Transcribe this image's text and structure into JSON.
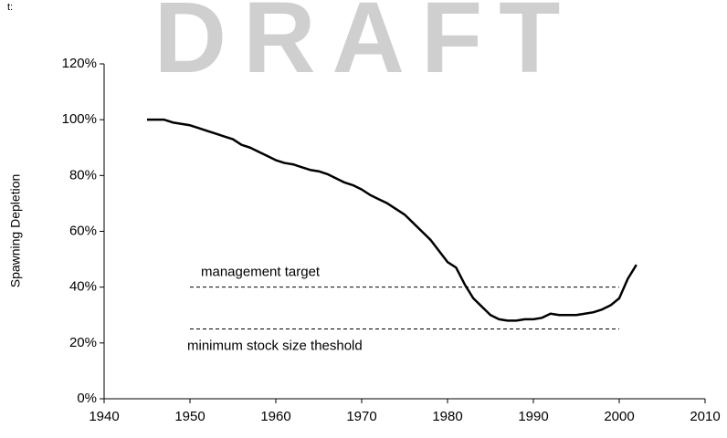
{
  "chart_data": {
    "type": "line",
    "watermark": "DRAFT",
    "corner_text": "t:",
    "y_label": "Spawning Depletion",
    "x": [
      1945,
      1946,
      1947,
      1948,
      1949,
      1950,
      1951,
      1952,
      1953,
      1954,
      1955,
      1956,
      1957,
      1958,
      1959,
      1960,
      1961,
      1962,
      1963,
      1964,
      1965,
      1966,
      1967,
      1968,
      1969,
      1970,
      1971,
      1972,
      1973,
      1974,
      1975,
      1976,
      1977,
      1978,
      1979,
      1980,
      1981,
      1982,
      1983,
      1984,
      1985,
      1986,
      1987,
      1988,
      1989,
      1990,
      1991,
      1992,
      1993,
      1994,
      1995,
      1996,
      1997,
      1998,
      1999,
      2000,
      2001,
      2002
    ],
    "series": [
      {
        "color": "#000000",
        "values": [
          100,
          100,
          100,
          99,
          98.5,
          98,
          97,
          96,
          95,
          94,
          93,
          91,
          90,
          88.5,
          87,
          85.5,
          84.5,
          84,
          83,
          82,
          81.5,
          80.5,
          79,
          77.5,
          76.5,
          75,
          73,
          71.5,
          70,
          68,
          66,
          63,
          60,
          57,
          53,
          49,
          47,
          41,
          36,
          33,
          30,
          28.5,
          28,
          28,
          28.5,
          28.5,
          29,
          30.5,
          30,
          30,
          30,
          30.5,
          31,
          32,
          33.5,
          36,
          43,
          48
        ]
      }
    ],
    "reference_lines": [
      {
        "label": "management target",
        "value": 40,
        "x": [
          1950,
          2000
        ]
      },
      {
        "label": "minimum stock size theshold",
        "value": 25,
        "x": [
          1950,
          2000
        ]
      }
    ],
    "xlim": [
      1940,
      2010
    ],
    "xticks": [
      1940,
      1950,
      1960,
      1970,
      1980,
      1990,
      2000,
      2010
    ],
    "ylim": [
      0,
      120
    ],
    "yticks": [
      {
        "value": 0,
        "label": "0%"
      },
      {
        "value": 20,
        "label": "20%"
      },
      {
        "value": 40,
        "label": "40%"
      },
      {
        "value": 60,
        "label": "60%"
      },
      {
        "value": 80,
        "label": "80%"
      },
      {
        "value": 100,
        "label": "100%"
      },
      {
        "value": 120,
        "label": "120%"
      }
    ]
  }
}
